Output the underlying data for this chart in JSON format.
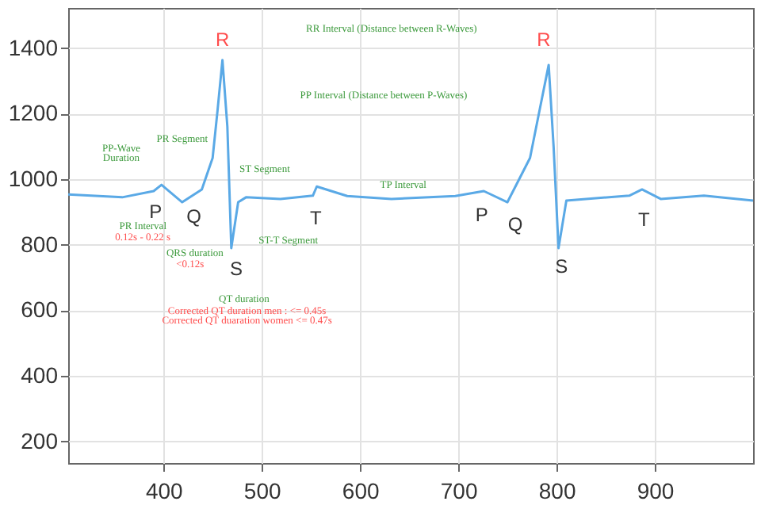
{
  "chart_data": {
    "type": "line",
    "xlim": [
      303,
      1000
    ],
    "ylim": [
      134,
      1523
    ],
    "xticks": [
      400,
      500,
      600,
      700,
      800,
      900
    ],
    "yticks": [
      200,
      400,
      600,
      800,
      {
        "value": 1000,
        "label": "1000"
      },
      {
        "value": 1200,
        "label": "1200"
      },
      {
        "value": 1400,
        "label": "1400"
      }
    ],
    "grid": true,
    "marker": "none",
    "line_style": "solid",
    "series": [
      {
        "color": "#5aa9e6",
        "x": [
          303,
          358,
          390,
          398,
          419,
          439,
          450,
          455,
          460,
          465,
          469,
          476,
          484,
          519,
          552,
          556,
          587,
          632,
          697,
          726,
          750,
          773,
          782,
          792,
          797,
          802,
          810,
          874,
          887,
          906,
          950,
          1000
        ],
        "values": [
          954,
          945,
          964,
          983,
          930,
          969,
          1065,
          1210,
          1364,
          1161,
          790,
          930,
          945,
          940,
          950,
          978,
          949,
          940,
          949,
          964,
          930,
          1065,
          1200,
          1349,
          1100,
          790,
          935,
          950,
          969,
          940,
          950,
          935
        ]
      }
    ],
    "annotations": [
      "RR Interval (Distance between R-Waves)",
      "PP Interval (Distance between P-Waves)",
      "PP-Wave",
      "Duration",
      "PR Segment",
      "ST Segment",
      "TP Interval",
      "PR Interval",
      "0.12s - 0.22 s",
      "ST-T Segment",
      "QRS duration",
      "<0.12s",
      "QT duration",
      "Corrected QT duration men : <= 0.45s",
      "Corrected QT duaration women <= 0.47s",
      "R",
      "R",
      "P",
      "Q",
      "S",
      "T",
      "P",
      "Q",
      "S",
      "T"
    ]
  }
}
